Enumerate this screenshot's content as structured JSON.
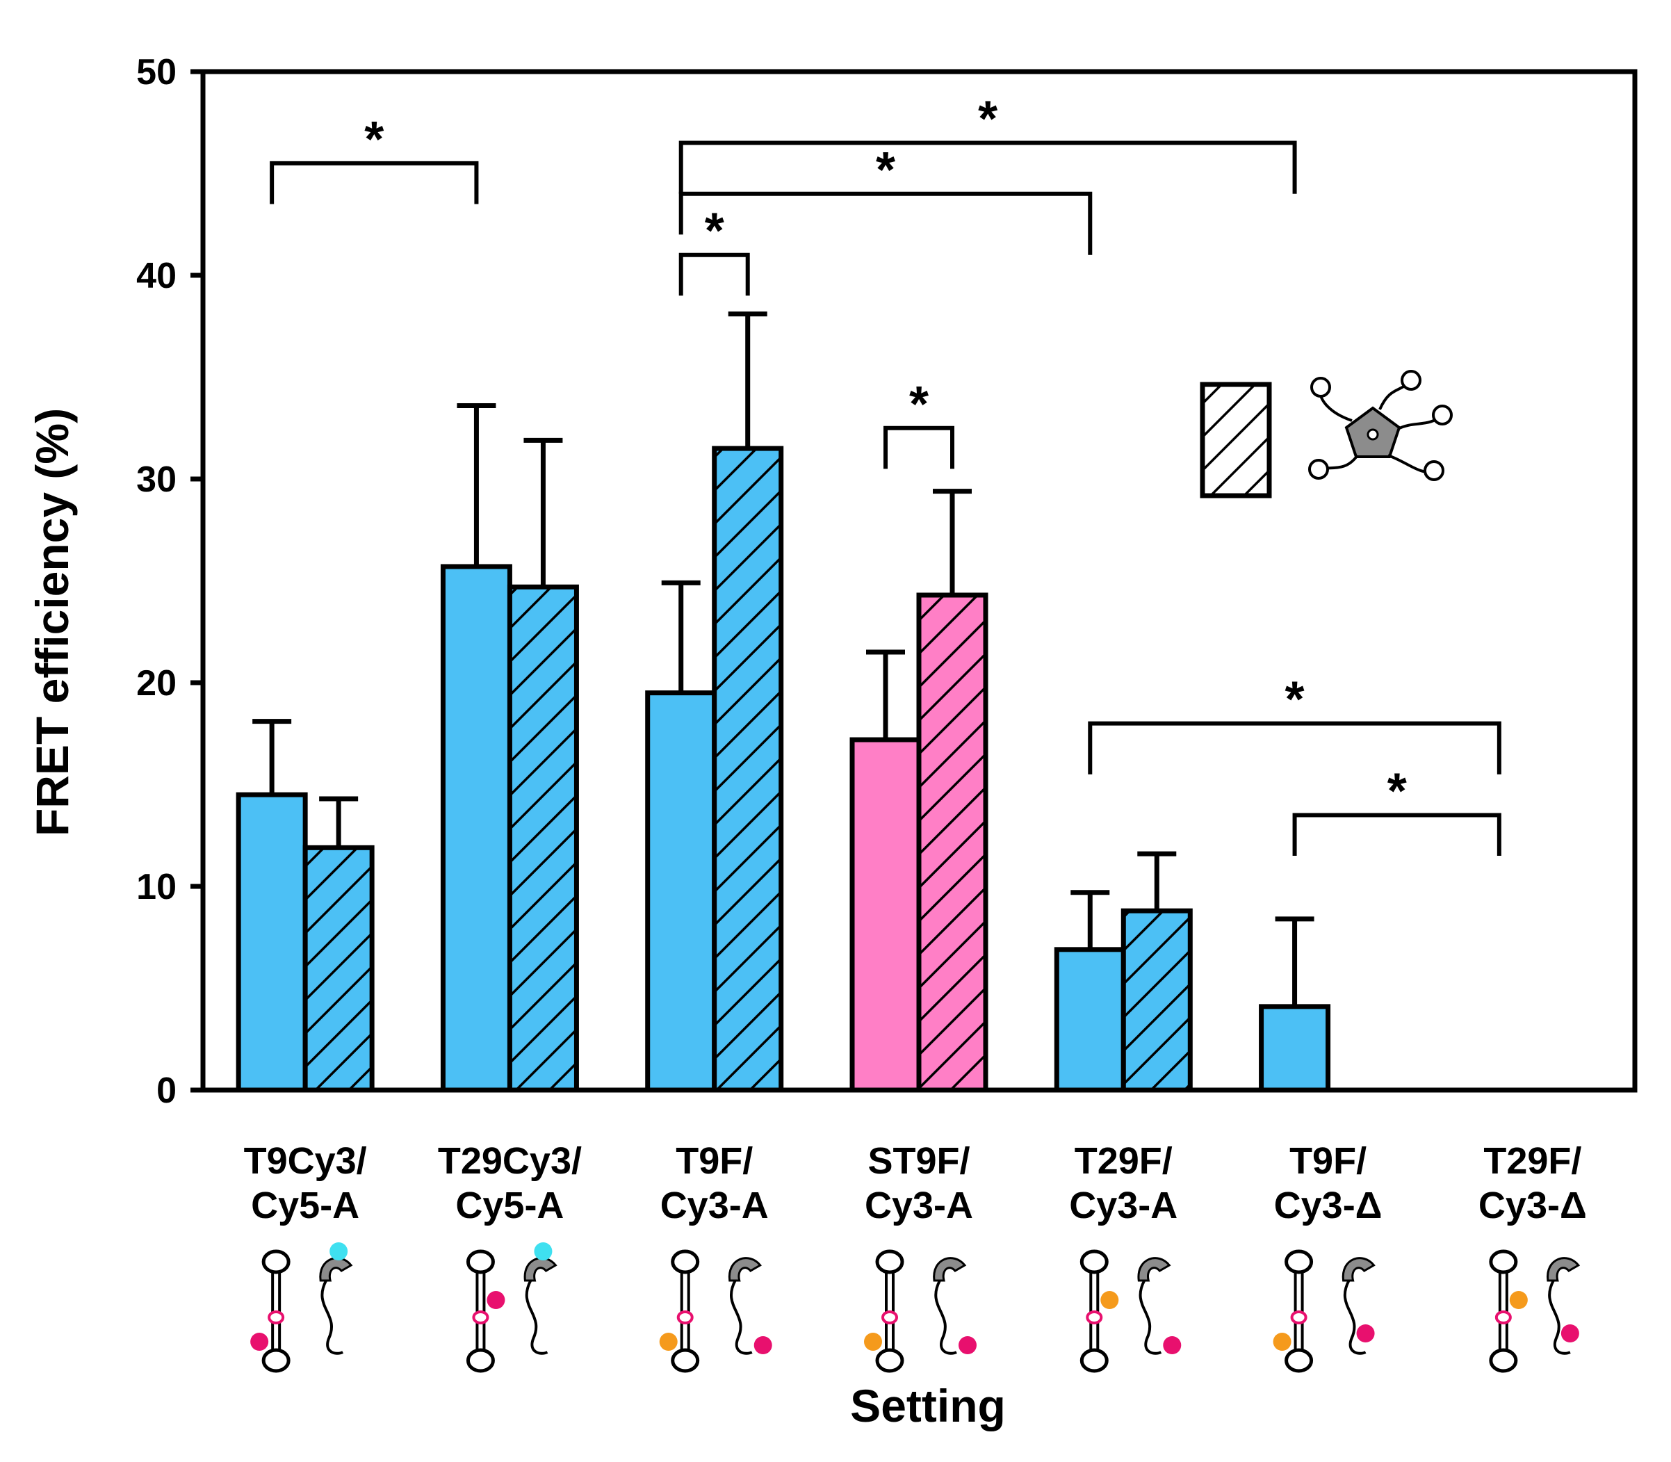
{
  "chart_data": {
    "type": "bar",
    "xlabel": "Setting",
    "ylabel": "FRET efficiency (%)",
    "ylim": [
      0,
      50
    ],
    "yticks": [
      0,
      10,
      20,
      30,
      40,
      50
    ],
    "grid": false,
    "categories": [
      {
        "line1": "T9Cy3/",
        "line2": "Cy5-A"
      },
      {
        "line1": "T29Cy3/",
        "line2": "Cy5-A"
      },
      {
        "line1": "T9F/",
        "line2": "Cy3-A"
      },
      {
        "line1": "ST9F/",
        "line2": "Cy3-A"
      },
      {
        "line1": "T29F/",
        "line2": "Cy3-A"
      },
      {
        "line1": "T9F/",
        "line2": "Cy3-Δ"
      },
      {
        "line1": "T29F/",
        "line2": "Cy3-Δ"
      }
    ],
    "series": [
      {
        "pattern": "solid",
        "values": [
          14.5,
          25.7,
          19.5,
          17.2,
          6.9,
          4.1,
          null
        ],
        "errors": [
          3.6,
          7.9,
          5.4,
          4.3,
          2.8,
          4.3,
          null
        ]
      },
      {
        "pattern": "hatched",
        "values": [
          11.9,
          24.7,
          31.5,
          24.3,
          8.8,
          null,
          null
        ],
        "errors": [
          2.4,
          7.2,
          6.6,
          5.1,
          2.8,
          null,
          null
        ]
      }
    ],
    "bar_colors": [
      "#4cc0f5",
      "#4cc0f5",
      "#4cc0f5",
      "#ff7fc6",
      "#4cc0f5",
      "#4cc0f5",
      "#4cc0f5"
    ],
    "significance": [
      {
        "from": [
          0,
          0
        ],
        "to": [
          1,
          0
        ],
        "left_y": 43.5,
        "right_y": 43.5,
        "top_y": 45.5,
        "label": "*"
      },
      {
        "from": [
          2,
          0
        ],
        "to": [
          5,
          0
        ],
        "left_y": 44,
        "right_y": 44,
        "top_y": 46.5,
        "label": "*"
      },
      {
        "from": [
          2,
          0
        ],
        "to": [
          4,
          0
        ],
        "left_y": 42,
        "right_y": 41,
        "top_y": 44,
        "label": "*"
      },
      {
        "from": [
          2,
          0
        ],
        "to": [
          2,
          1
        ],
        "left_y": 39,
        "right_y": 39,
        "top_y": 41,
        "label": "*"
      },
      {
        "from": [
          3,
          0
        ],
        "to": [
          3,
          1
        ],
        "left_y": 30.5,
        "right_y": 30.5,
        "top_y": 32.5,
        "label": "*"
      },
      {
        "from": [
          4,
          0
        ],
        "to": [
          6,
          0
        ],
        "left_y": 15.5,
        "right_y": 15.5,
        "top_y": 18,
        "label": "*"
      },
      {
        "from": [
          5,
          0
        ],
        "to": [
          6,
          0
        ],
        "left_y": 11.5,
        "right_y": 11.5,
        "top_y": 13.5,
        "label": "*"
      }
    ],
    "legend": {
      "placement": "right",
      "pattern": "hatched",
      "icon": "ligand-molecule-icon"
    },
    "schematics": [
      {
        "acceptor": "#e8106e",
        "acceptor_pos": "stem-bottom",
        "donor": "#3fe0f0",
        "donor_pos": "protein-top"
      },
      {
        "acceptor": "#e8106e",
        "acceptor_pos": "stem-mid",
        "donor": "#3fe0f0",
        "donor_pos": "protein-top"
      },
      {
        "acceptor": "#f59a1c",
        "acceptor_pos": "stem-bottom",
        "donor": "#e8106e",
        "donor_pos": "protein-tail"
      },
      {
        "acceptor": "#f59a1c",
        "acceptor_pos": "stem-bottom",
        "donor": "#e8106e",
        "donor_pos": "protein-tail"
      },
      {
        "acceptor": "#f59a1c",
        "acceptor_pos": "stem-mid",
        "donor": "#e8106e",
        "donor_pos": "protein-tail"
      },
      {
        "acceptor": "#f59a1c",
        "acceptor_pos": "stem-bottom",
        "donor": "#e8106e",
        "donor_pos": "protein-mid"
      },
      {
        "acceptor": "#f59a1c",
        "acceptor_pos": "stem-mid",
        "donor": "#e8106e",
        "donor_pos": "protein-mid"
      }
    ]
  }
}
